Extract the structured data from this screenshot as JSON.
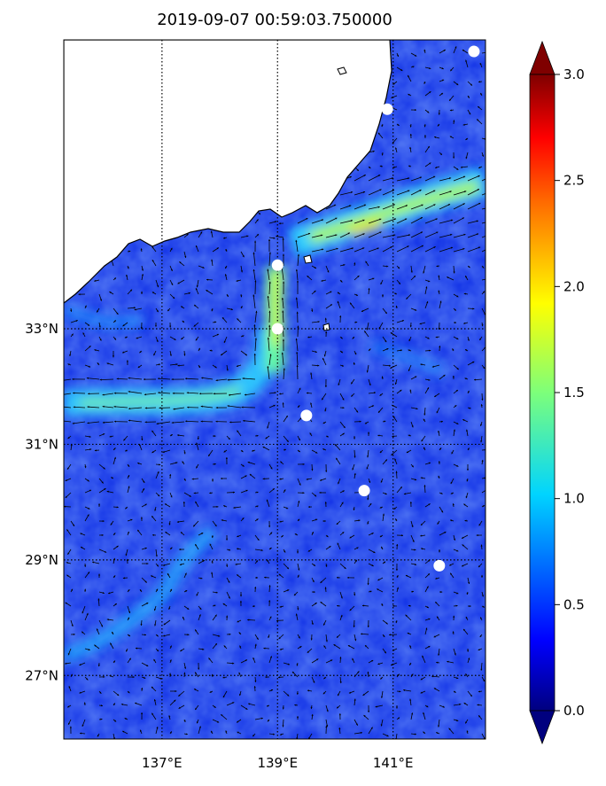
{
  "title": "2019-09-07 00:59:03.750000",
  "map": {
    "lon_range": [
      135.3,
      142.6
    ],
    "lat_range": [
      25.9,
      38.0
    ],
    "lon_ticks": [
      {
        "value": 137,
        "label": "137°E"
      },
      {
        "value": 139,
        "label": "139°E"
      },
      {
        "value": 141,
        "label": "141°E"
      }
    ],
    "lat_ticks": [
      {
        "value": 33,
        "label": "33°N"
      },
      {
        "value": 31,
        "label": "31°N"
      },
      {
        "value": 29,
        "label": "29°N"
      },
      {
        "value": 27,
        "label": "27°N"
      }
    ],
    "gridlines": "dotted",
    "field_colormap": "jet",
    "land_color": "#ffffff",
    "coast_color": "#000000",
    "marker_color": "#ffffff",
    "markers": [
      {
        "lon": 142.4,
        "lat": 37.8
      },
      {
        "lon": 140.9,
        "lat": 36.8
      },
      {
        "lon": 139.0,
        "lat": 34.1
      },
      {
        "lon": 139.0,
        "lat": 33.0
      },
      {
        "lon": 139.5,
        "lat": 31.5
      },
      {
        "lon": 140.5,
        "lat": 30.2
      },
      {
        "lon": 141.8,
        "lat": 28.9
      }
    ]
  },
  "colorbar": {
    "min": 0.0,
    "max": 3.0,
    "ticks": [
      "0.0",
      "0.5",
      "1.0",
      "1.5",
      "2.0",
      "2.5",
      "3.0"
    ],
    "extend": "both"
  }
}
